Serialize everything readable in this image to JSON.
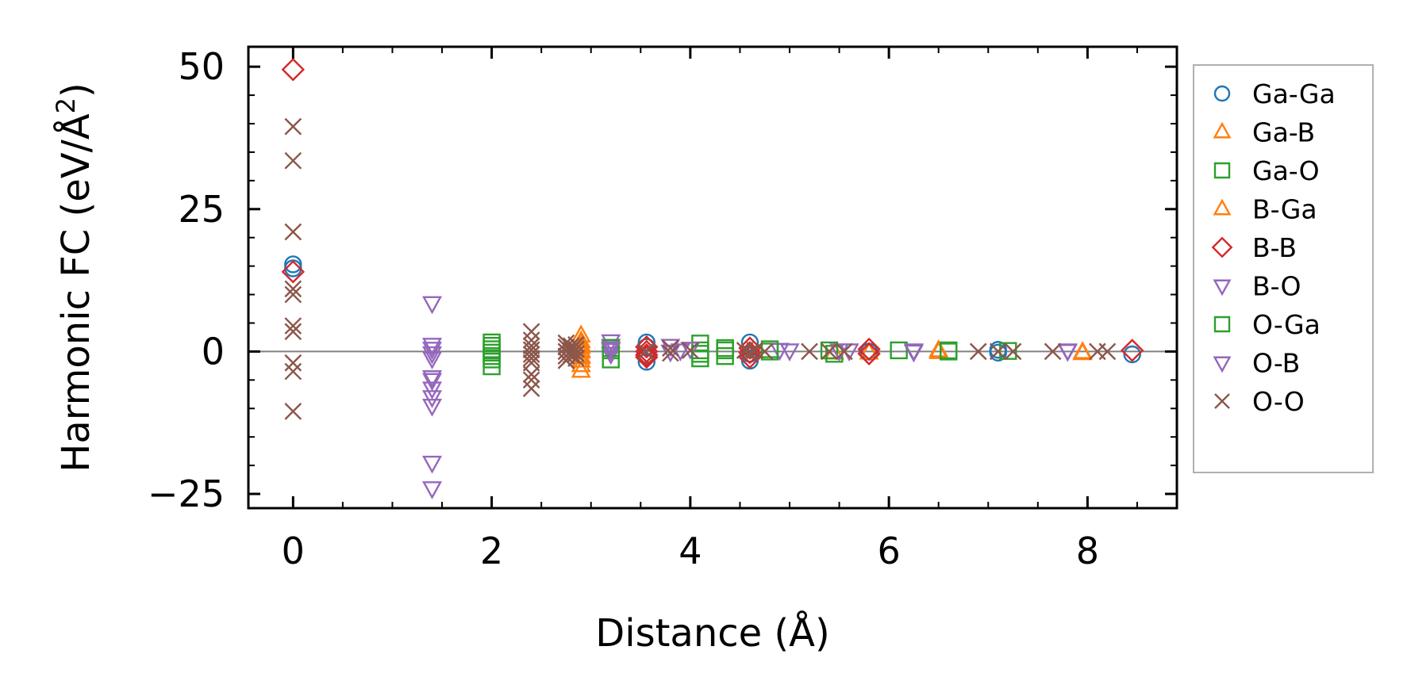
{
  "chart_data": {
    "type": "scatter",
    "xlabel": "Distance (Å)",
    "ylabel_main": "Harmonic FC (eV/Å",
    "ylabel_sup": "2",
    "ylabel_close": ")",
    "xlim": [
      -0.45,
      8.9
    ],
    "ylim": [
      -27.5,
      53.5
    ],
    "xticks": [
      0,
      2,
      4,
      6,
      8
    ],
    "xtick_labels": [
      "0",
      "2",
      "4",
      "6",
      "8"
    ],
    "yticks": [
      -25,
      0,
      25,
      50
    ],
    "ytick_labels": [
      "−25",
      "0",
      "25",
      "50"
    ],
    "x_minor_step": 0.5,
    "y_minor_step": 5,
    "zero_line": true,
    "grid": false,
    "legend_position": "outside-right",
    "series": [
      {
        "name": "Ga-Ga",
        "marker": "circle",
        "color": "#1f77b4",
        "x": [
          0,
          0,
          3.56,
          3.56,
          3.56,
          3.56,
          4.6,
          4.6,
          4.6,
          5.8,
          7.1,
          7.1,
          8.45
        ],
        "y": [
          15.3,
          14.6,
          1.6,
          0.8,
          -0.6,
          -1.8,
          1.6,
          -0.4,
          -1.6,
          0,
          0.3,
          -0.2,
          -0.5
        ]
      },
      {
        "name": "Ga-B",
        "marker": "triangle-up",
        "color": "#ff7f0e",
        "x": [
          2.9,
          2.9,
          2.9,
          2.9,
          2.9,
          2.9,
          2.9,
          2.9,
          5.45,
          5.8,
          6.5,
          7.95
        ],
        "y": [
          2.8,
          1.8,
          0.8,
          0,
          -0.8,
          -1.6,
          -2.4,
          -3.4,
          -0.2,
          -0.2,
          -0.1,
          -0.3
        ]
      },
      {
        "name": "Ga-O",
        "marker": "square",
        "color": "#2ca02c",
        "x": [
          2.0,
          2.0,
          2.0,
          2.0,
          2.0,
          2.0,
          2.0,
          3.2,
          3.2,
          4.1,
          4.1,
          4.1,
          4.35,
          4.35,
          4.8,
          5.4,
          5.45,
          6.6
        ],
        "y": [
          1.6,
          1.0,
          0.4,
          -0.2,
          -0.8,
          -1.4,
          -2.6,
          0.2,
          -1.4,
          1.4,
          0.2,
          -1.2,
          0.6,
          -0.8,
          0,
          0.2,
          -0.4,
          0
        ]
      },
      {
        "name": "B-Ga",
        "marker": "triangle-up",
        "color": "#ff7f0e",
        "x": [
          2.9,
          2.9,
          2.9,
          6.5,
          7.95
        ],
        "y": [
          1.2,
          0.2,
          -1.0,
          0.2,
          -0.1
        ]
      },
      {
        "name": "B-B",
        "marker": "diamond",
        "color": "#d62728",
        "x": [
          0,
          0,
          3.56,
          3.56,
          3.56,
          3.56,
          4.6,
          4.6,
          4.6,
          5.8,
          5.8,
          8.45
        ],
        "y": [
          49.5,
          14.0,
          0.8,
          0,
          -0.6,
          -1.0,
          0.6,
          -0.2,
          -1.0,
          0.4,
          -0.4,
          0.2
        ]
      },
      {
        "name": "B-O",
        "marker": "triangle-down",
        "color": "#9467bd",
        "x": [
          1.4,
          1.4,
          1.4,
          1.4,
          1.4,
          1.4,
          1.4,
          1.4,
          1.4,
          1.4,
          1.4,
          1.4,
          3.2,
          3.2,
          3.2,
          3.2,
          3.8,
          3.8,
          4.0,
          4.9,
          5.0,
          5.5,
          6.25,
          7.8
        ],
        "y": [
          8.5,
          1.2,
          0.5,
          -0.3,
          -1.2,
          -4.5,
          -5.0,
          -6.5,
          -8.0,
          -9.5,
          -19.5,
          -24.0,
          1.8,
          1.0,
          0.3,
          -0.4,
          1.0,
          0,
          0.5,
          0.3,
          0.2,
          0.2,
          0,
          0.2
        ]
      },
      {
        "name": "O-Ga",
        "marker": "square",
        "color": "#2ca02c",
        "x": [
          3.2,
          4.1,
          4.35,
          4.8,
          6.1,
          6.6,
          7.2
        ],
        "y": [
          0.6,
          -0.4,
          0.2,
          0.4,
          0.2,
          0.2,
          0.1
        ]
      },
      {
        "name": "O-B",
        "marker": "triangle-down",
        "color": "#9467bd",
        "x": [
          3.2,
          3.9,
          5.6,
          6.25,
          7.8
        ],
        "y": [
          0.6,
          0.2,
          0.2,
          0.2,
          0.1
        ]
      },
      {
        "name": "O-O",
        "marker": "x",
        "color": "#8c564b",
        "x": [
          0,
          0,
          0,
          0,
          0,
          0,
          0,
          0,
          0,
          0,
          2.4,
          2.4,
          2.4,
          2.4,
          2.4,
          2.4,
          2.4,
          2.4,
          2.4,
          2.4,
          2.75,
          2.75,
          2.75,
          2.75,
          2.75,
          2.8,
          2.8,
          2.8,
          2.85,
          2.85,
          2.85,
          2.85,
          3.55,
          3.8,
          3.8,
          4.0,
          4.55,
          4.6,
          4.65,
          4.75,
          5.2,
          5.4,
          5.55,
          6.9,
          7.1,
          7.25,
          7.65,
          8.1,
          8.2
        ],
        "y": [
          39.5,
          33.5,
          21.0,
          11.0,
          10.0,
          4.5,
          3.5,
          -2.0,
          -3.5,
          -10.5,
          3.5,
          2.0,
          1.0,
          0.3,
          -0.5,
          -1.2,
          -2.0,
          -4.0,
          -5.0,
          -6.5,
          1.5,
          0.8,
          0,
          -0.8,
          -1.6,
          1.0,
          0.2,
          -0.6,
          1.2,
          0.4,
          -0.4,
          -1.2,
          0,
          0.6,
          -0.3,
          0.2,
          0.2,
          -0.2,
          0.2,
          0,
          0,
          0,
          0,
          0,
          0,
          0,
          0,
          0,
          0
        ]
      }
    ]
  }
}
